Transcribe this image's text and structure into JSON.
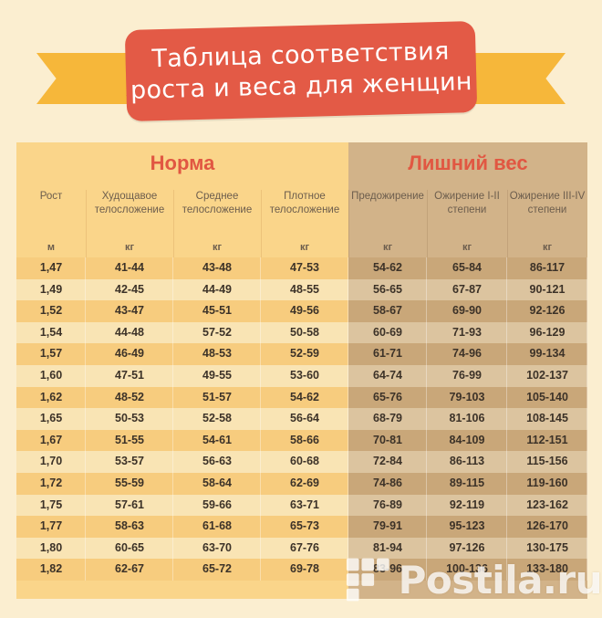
{
  "banner": {
    "line1": "Таблица соответствия",
    "line2": "роста и веса для женщин"
  },
  "sections": {
    "norm": "Норма",
    "over": "Лишний вес"
  },
  "columns": [
    {
      "label": "Рост",
      "unit": "м"
    },
    {
      "label": "Худощавое телосложение",
      "unit": "кг"
    },
    {
      "label": "Среднее телосложение",
      "unit": "кг"
    },
    {
      "label": "Плотное телосложение",
      "unit": "кг"
    },
    {
      "label": "Предожирение",
      "unit": "кг"
    },
    {
      "label": "Ожирение I-II степени",
      "unit": "кг"
    },
    {
      "label": "Ожирение III-IV степени",
      "unit": "кг"
    }
  ],
  "rows": [
    [
      "1,47",
      "41-44",
      "43-48",
      "47-53",
      "54-62",
      "65-84",
      "86-117"
    ],
    [
      "1,49",
      "42-45",
      "44-49",
      "48-55",
      "56-65",
      "67-87",
      "90-121"
    ],
    [
      "1,52",
      "43-47",
      "45-51",
      "49-56",
      "58-67",
      "69-90",
      "92-126"
    ],
    [
      "1,54",
      "44-48",
      "57-52",
      "50-58",
      "60-69",
      "71-93",
      "96-129"
    ],
    [
      "1,57",
      "46-49",
      "48-53",
      "52-59",
      "61-71",
      "74-96",
      "99-134"
    ],
    [
      "1,60",
      "47-51",
      "49-55",
      "53-60",
      "64-74",
      "76-99",
      "102-137"
    ],
    [
      "1,62",
      "48-52",
      "51-57",
      "54-62",
      "65-76",
      "79-103",
      "105-140"
    ],
    [
      "1,65",
      "50-53",
      "52-58",
      "56-64",
      "68-79",
      "81-106",
      "108-145"
    ],
    [
      "1,67",
      "51-55",
      "54-61",
      "58-66",
      "70-81",
      "84-109",
      "112-151"
    ],
    [
      "1,70",
      "53-57",
      "56-63",
      "60-68",
      "72-84",
      "86-113",
      "115-156"
    ],
    [
      "1,72",
      "55-59",
      "58-64",
      "62-69",
      "74-86",
      "89-115",
      "119-160"
    ],
    [
      "1,75",
      "57-61",
      "59-66",
      "63-71",
      "76-89",
      "92-119",
      "123-162"
    ],
    [
      "1,77",
      "58-63",
      "61-68",
      "65-73",
      "79-91",
      "95-123",
      "126-170"
    ],
    [
      "1,80",
      "60-65",
      "63-70",
      "67-76",
      "81-94",
      "97-126",
      "130-175"
    ],
    [
      "1,82",
      "62-67",
      "65-72",
      "69-78",
      "83-96",
      "100-136",
      "133-180"
    ]
  ],
  "watermark": {
    "text": "Postila.ru",
    "icon": "postila-logo-icon"
  }
}
